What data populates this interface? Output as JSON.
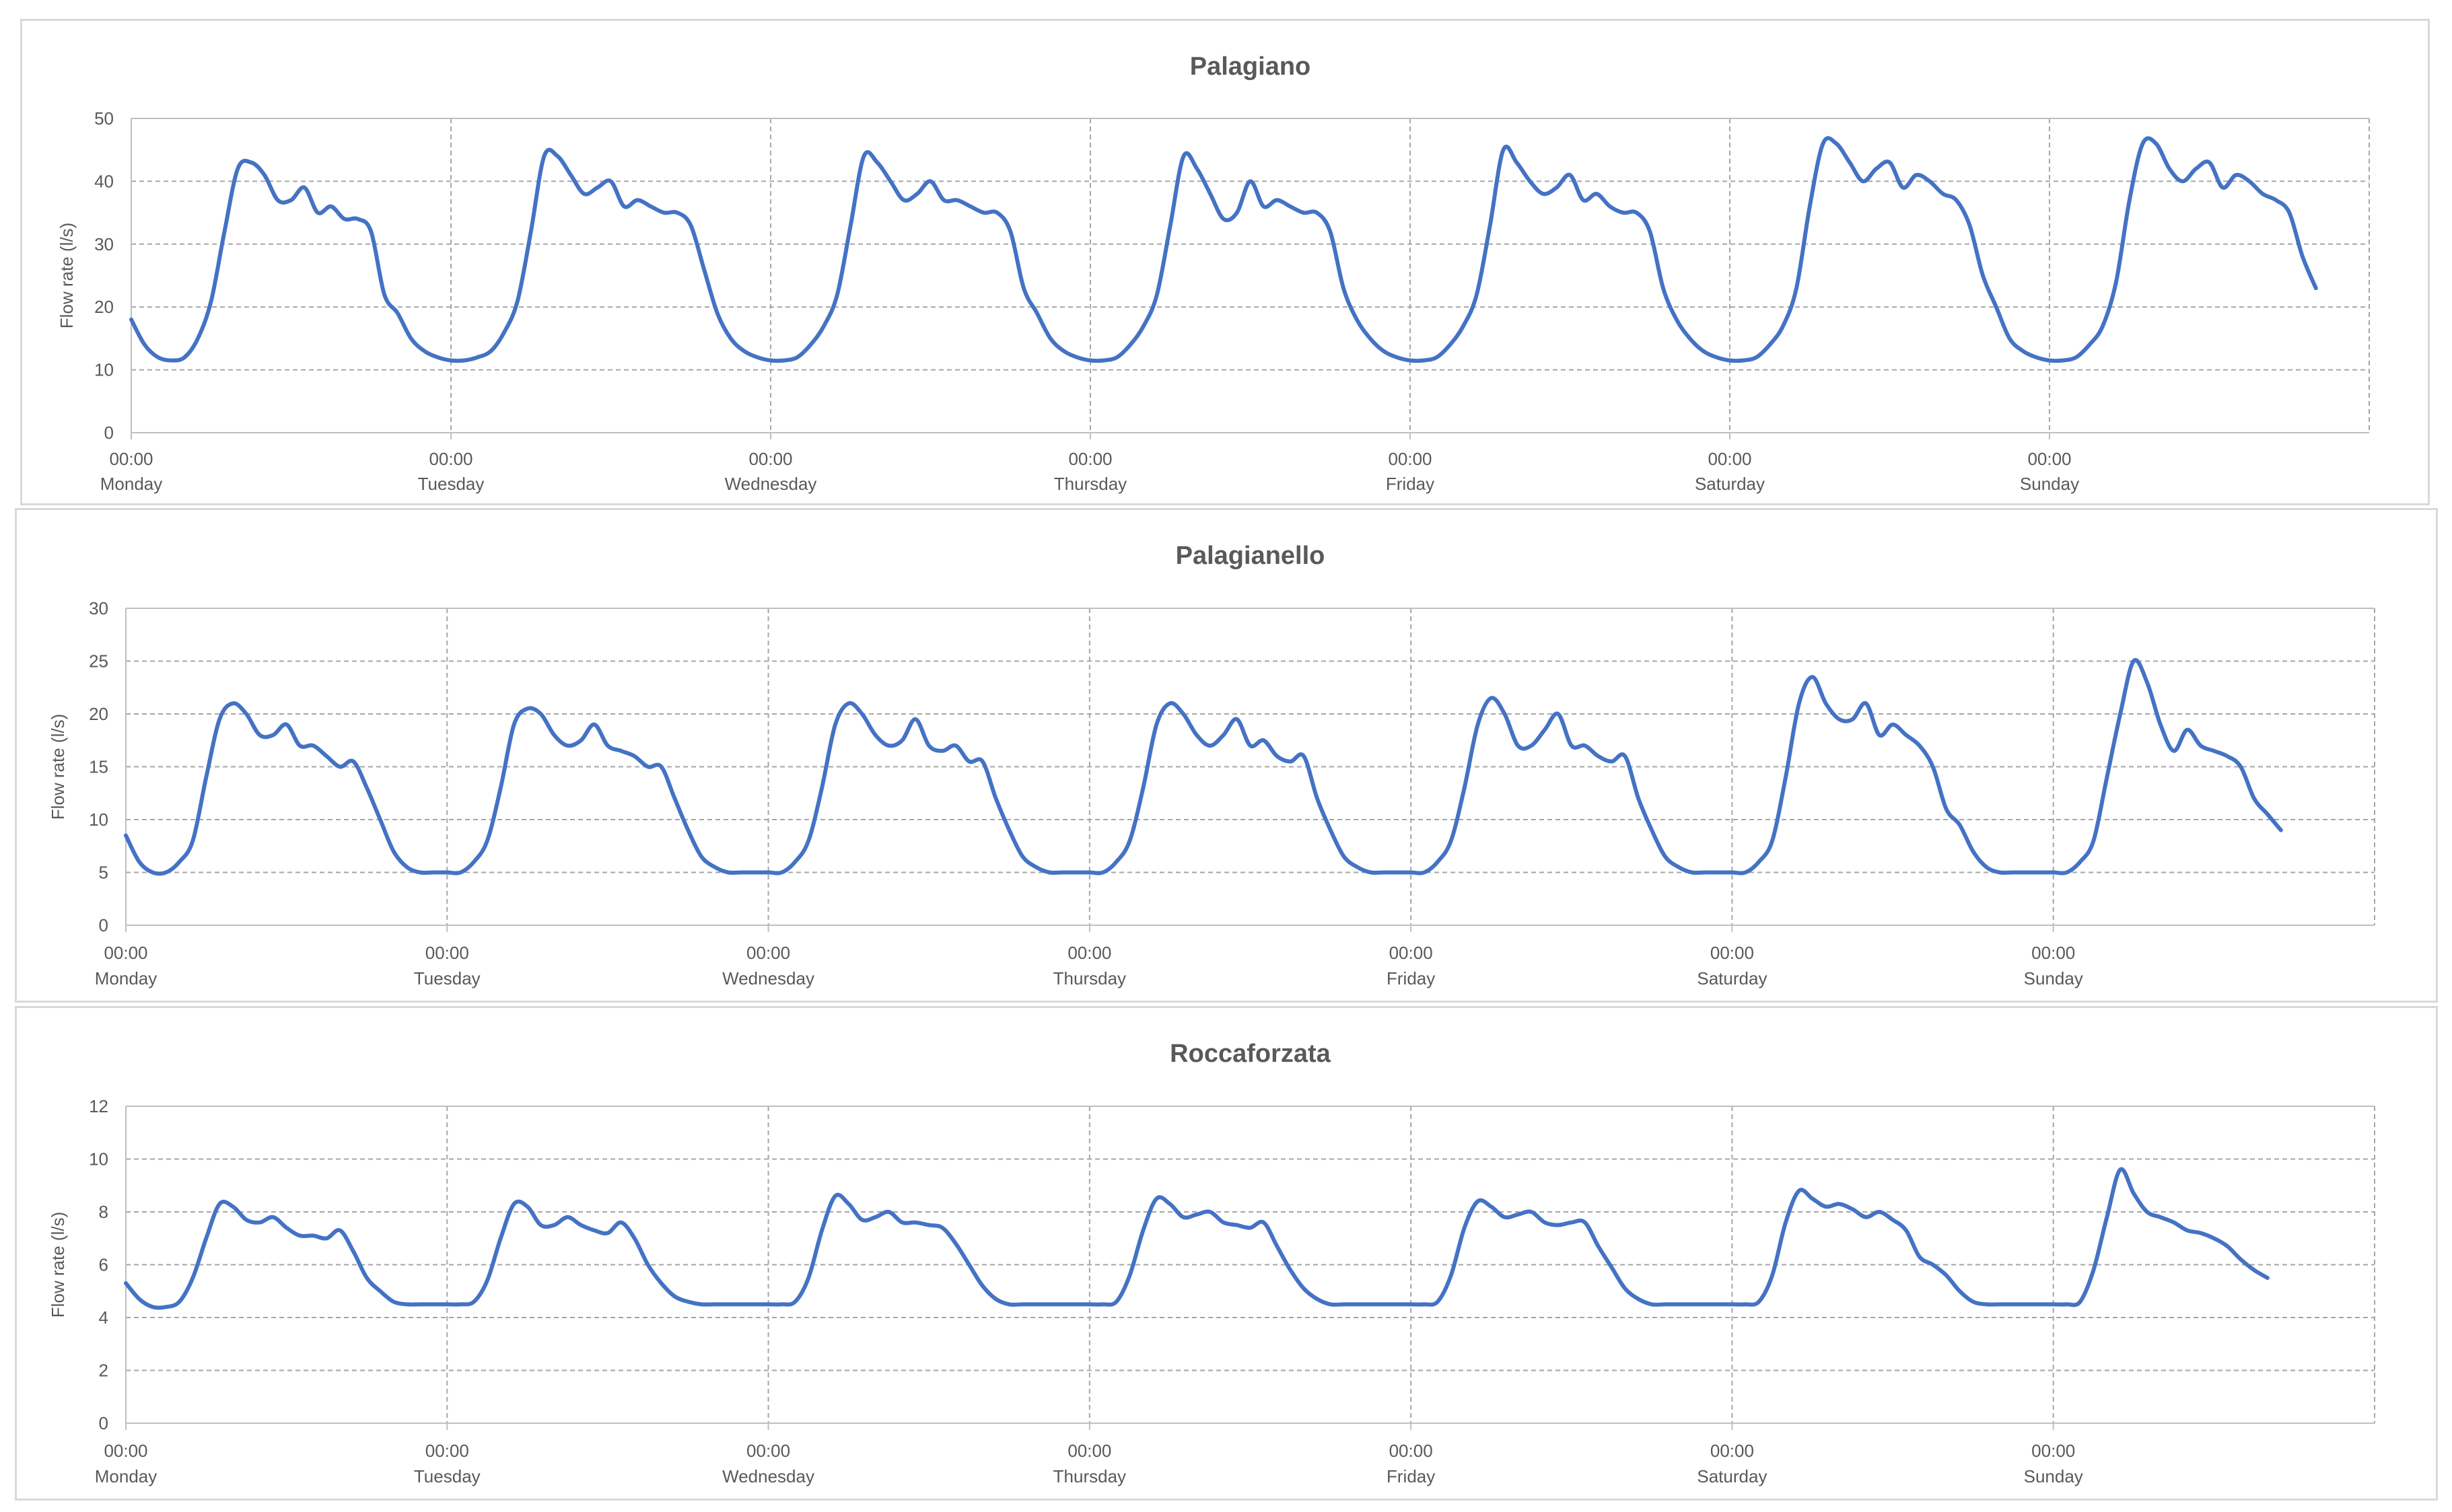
{
  "chart_data": [
    {
      "type": "line",
      "title": "Palagiano",
      "xlabel": "",
      "ylabel": "Flow rate (l/s)",
      "ylim": [
        0,
        50
      ],
      "yticks": [
        "0",
        "10",
        "20",
        "30",
        "40",
        "50"
      ],
      "xticks": [
        {
          "time": "00:00",
          "day": "Monday"
        },
        {
          "time": "00:00",
          "day": "Tuesday"
        },
        {
          "time": "00:00",
          "day": "Wednesday"
        },
        {
          "time": "00:00",
          "day": "Thursday"
        },
        {
          "time": "00:00",
          "day": "Friday"
        },
        {
          "time": "00:00",
          "day": "Saturday"
        },
        {
          "time": "00:00",
          "day": "Sunday"
        }
      ],
      "grid": true,
      "line_color": "#4472c4",
      "days": [
        "Monday",
        "Tuesday",
        "Wednesday",
        "Thursday",
        "Friday",
        "Saturday",
        "Sunday"
      ],
      "hours": [
        0,
        1,
        2,
        3,
        4,
        5,
        6,
        7,
        8,
        9,
        10,
        11,
        12,
        13,
        14,
        15,
        16,
        17,
        18,
        19,
        20,
        21,
        22,
        23,
        24
      ],
      "series": [
        {
          "day": "Monday",
          "values": [
            18,
            14,
            12,
            11.5,
            12,
            15,
            21,
            32,
            42,
            43,
            41,
            37,
            37,
            39,
            35,
            36,
            34,
            34,
            32,
            22,
            19,
            15,
            13,
            12,
            11.5
          ]
        },
        {
          "day": "Tuesday",
          "values": [
            11.5,
            11.5,
            12,
            13,
            16,
            21,
            32,
            44,
            44,
            41,
            38,
            39,
            40,
            36,
            37,
            36,
            35,
            35,
            33,
            26,
            19,
            15,
            13,
            12,
            11.5
          ]
        },
        {
          "day": "Wednesday",
          "values": [
            11.5,
            11.5,
            12,
            14,
            17,
            22,
            33,
            44,
            43,
            40,
            37,
            38,
            40,
            37,
            37,
            36,
            35,
            35,
            32,
            23,
            19,
            15,
            13,
            12,
            11.5
          ]
        },
        {
          "day": "Thursday",
          "values": [
            11.5,
            11.5,
            12,
            14,
            17,
            22,
            33,
            44,
            42,
            38,
            34,
            35,
            40,
            36,
            37,
            36,
            35,
            35,
            32,
            23,
            18,
            15,
            13,
            12,
            11.5
          ]
        },
        {
          "day": "Friday",
          "values": [
            11.5,
            11.5,
            12,
            14,
            17,
            22,
            33,
            45,
            43,
            40,
            38,
            39,
            41,
            37,
            38,
            36,
            35,
            35,
            32,
            23,
            18,
            15,
            13,
            12,
            11.5
          ]
        },
        {
          "day": "Saturday",
          "values": [
            11.5,
            11.5,
            12,
            14,
            17,
            23,
            36,
            46,
            46,
            43,
            40,
            42,
            43,
            39,
            41,
            40,
            38,
            37,
            33,
            25,
            20,
            15,
            13,
            12,
            11.5
          ]
        },
        {
          "day": "Sunday",
          "values": [
            11.5,
            11.5,
            12,
            14,
            17,
            24,
            37,
            46,
            46,
            42,
            40,
            42,
            43,
            39,
            41,
            40,
            38,
            37,
            35,
            28,
            23,
            null,
            null,
            null,
            null
          ]
        }
      ]
    },
    {
      "type": "line",
      "title": "Palagianello",
      "xlabel": "",
      "ylabel": "Flow rate (l/s)",
      "ylim": [
        0,
        30
      ],
      "yticks": [
        "0",
        "5",
        "10",
        "15",
        "20",
        "25",
        "30"
      ],
      "xticks": [
        {
          "time": "00:00",
          "day": "Monday"
        },
        {
          "time": "00:00",
          "day": "Tuesday"
        },
        {
          "time": "00:00",
          "day": "Wednesday"
        },
        {
          "time": "00:00",
          "day": "Thursday"
        },
        {
          "time": "00:00",
          "day": "Friday"
        },
        {
          "time": "00:00",
          "day": "Saturday"
        },
        {
          "time": "00:00",
          "day": "Sunday"
        }
      ],
      "grid": true,
      "line_color": "#4472c4",
      "days": [
        "Monday",
        "Tuesday",
        "Wednesday",
        "Thursday",
        "Friday",
        "Saturday",
        "Sunday"
      ],
      "hours": [
        0,
        1,
        2,
        3,
        4,
        5,
        6,
        7,
        8,
        9,
        10,
        11,
        12,
        13,
        14,
        15,
        16,
        17,
        18,
        19,
        20,
        21,
        22,
        23,
        24
      ],
      "series": [
        {
          "day": "Monday",
          "values": [
            8.5,
            6,
            5,
            5,
            6,
            8,
            14,
            19.5,
            21,
            20,
            18,
            18,
            19,
            17,
            17,
            16,
            15,
            15.5,
            13,
            10,
            7,
            5.5,
            5,
            5,
            5
          ]
        },
        {
          "day": "Tuesday",
          "values": [
            5,
            5,
            6,
            8,
            13,
            19,
            20.5,
            20,
            18,
            17,
            17.5,
            19,
            17,
            16.5,
            16,
            15,
            15,
            12,
            9,
            6.5,
            5.5,
            5,
            5,
            5,
            5
          ]
        },
        {
          "day": "Wednesday",
          "values": [
            5,
            5,
            6,
            8,
            13,
            19,
            21,
            20,
            18,
            17,
            17.5,
            19.5,
            17,
            16.5,
            17,
            15.5,
            15.5,
            12,
            9,
            6.5,
            5.5,
            5,
            5,
            5,
            5
          ]
        },
        {
          "day": "Thursday",
          "values": [
            5,
            5,
            6,
            8,
            13,
            19,
            21,
            20,
            18,
            17,
            18,
            19.5,
            17,
            17.5,
            16,
            15.5,
            16,
            12,
            9,
            6.5,
            5.5,
            5,
            5,
            5,
            5
          ]
        },
        {
          "day": "Friday",
          "values": [
            5,
            5,
            6,
            8,
            13,
            19,
            21.5,
            20,
            17,
            17,
            18.5,
            20,
            17,
            17,
            16,
            15.5,
            16,
            12,
            9,
            6.5,
            5.5,
            5,
            5,
            5,
            5
          ]
        },
        {
          "day": "Saturday",
          "values": [
            5,
            5,
            6,
            8,
            14,
            21,
            23.5,
            21,
            19.5,
            19.5,
            21,
            18,
            19,
            18,
            17,
            15,
            11,
            9.5,
            7,
            5.5,
            5,
            5,
            5,
            5,
            5
          ]
        },
        {
          "day": "Sunday",
          "values": [
            5,
            5,
            6,
            8,
            14,
            20,
            25,
            23,
            19,
            16.5,
            18.5,
            17,
            16.5,
            16,
            15,
            12,
            10.5,
            9,
            null,
            null,
            null,
            null,
            null,
            null,
            null
          ]
        }
      ]
    },
    {
      "type": "line",
      "title": "Roccaforzata",
      "xlabel": "",
      "ylabel": "Flow rate (l/s)",
      "ylim": [
        0,
        12
      ],
      "yticks": [
        "0",
        "2",
        "4",
        "6",
        "8",
        "10",
        "12"
      ],
      "xticks": [
        {
          "time": "00:00",
          "day": "Monday"
        },
        {
          "time": "00:00",
          "day": "Tuesday"
        },
        {
          "time": "00:00",
          "day": "Wednesday"
        },
        {
          "time": "00:00",
          "day": "Thursday"
        },
        {
          "time": "00:00",
          "day": "Friday"
        },
        {
          "time": "00:00",
          "day": "Saturday"
        },
        {
          "time": "00:00",
          "day": "Sunday"
        }
      ],
      "grid": true,
      "line_color": "#4472c4",
      "days": [
        "Monday",
        "Tuesday",
        "Wednesday",
        "Thursday",
        "Friday",
        "Saturday",
        "Sunday"
      ],
      "hours": [
        0,
        1,
        2,
        3,
        4,
        5,
        6,
        7,
        8,
        9,
        10,
        11,
        12,
        13,
        14,
        15,
        16,
        17,
        18,
        19,
        20,
        21,
        22,
        23,
        24
      ],
      "series": [
        {
          "day": "Monday",
          "values": [
            5.3,
            4.7,
            4.4,
            4.4,
            4.6,
            5.5,
            7,
            8.3,
            8.2,
            7.7,
            7.6,
            7.8,
            7.4,
            7.1,
            7.1,
            7,
            7.3,
            6.5,
            5.5,
            5,
            4.6,
            4.5,
            4.5,
            4.5,
            4.5
          ]
        },
        {
          "day": "Tuesday",
          "values": [
            4.5,
            4.5,
            4.6,
            5.4,
            7,
            8.3,
            8.2,
            7.5,
            7.5,
            7.8,
            7.5,
            7.3,
            7.2,
            7.6,
            7,
            6,
            5.3,
            4.8,
            4.6,
            4.5,
            4.5,
            4.5,
            4.5,
            4.5,
            4.5
          ]
        },
        {
          "day": "Wednesday",
          "values": [
            4.5,
            4.5,
            4.6,
            5.5,
            7.3,
            8.6,
            8.3,
            7.7,
            7.8,
            8,
            7.6,
            7.6,
            7.5,
            7.4,
            6.8,
            6,
            5.2,
            4.7,
            4.5,
            4.5,
            4.5,
            4.5,
            4.5,
            4.5,
            4.5
          ]
        },
        {
          "day": "Thursday",
          "values": [
            4.5,
            4.5,
            4.6,
            5.6,
            7.3,
            8.5,
            8.3,
            7.8,
            7.9,
            8,
            7.6,
            7.5,
            7.4,
            7.6,
            6.7,
            5.8,
            5.1,
            4.7,
            4.5,
            4.5,
            4.5,
            4.5,
            4.5,
            4.5,
            4.5
          ]
        },
        {
          "day": "Friday",
          "values": [
            4.5,
            4.5,
            4.6,
            5.6,
            7.4,
            8.4,
            8.2,
            7.8,
            7.9,
            8,
            7.6,
            7.5,
            7.6,
            7.6,
            6.7,
            5.9,
            5.1,
            4.7,
            4.5,
            4.5,
            4.5,
            4.5,
            4.5,
            4.5,
            4.5
          ]
        },
        {
          "day": "Saturday",
          "values": [
            4.5,
            4.5,
            4.6,
            5.6,
            7.6,
            8.8,
            8.5,
            8.2,
            8.3,
            8.1,
            7.8,
            8,
            7.7,
            7.3,
            6.3,
            6,
            5.6,
            5,
            4.6,
            4.5,
            4.5,
            4.5,
            4.5,
            4.5,
            4.5
          ]
        },
        {
          "day": "Sunday",
          "values": [
            4.5,
            4.5,
            4.6,
            5.8,
            7.8,
            9.6,
            8.7,
            8,
            7.8,
            7.6,
            7.3,
            7.2,
            7,
            6.7,
            6.2,
            5.8,
            5.5,
            null,
            null,
            null,
            null,
            null,
            null,
            null,
            null
          ]
        }
      ]
    }
  ]
}
